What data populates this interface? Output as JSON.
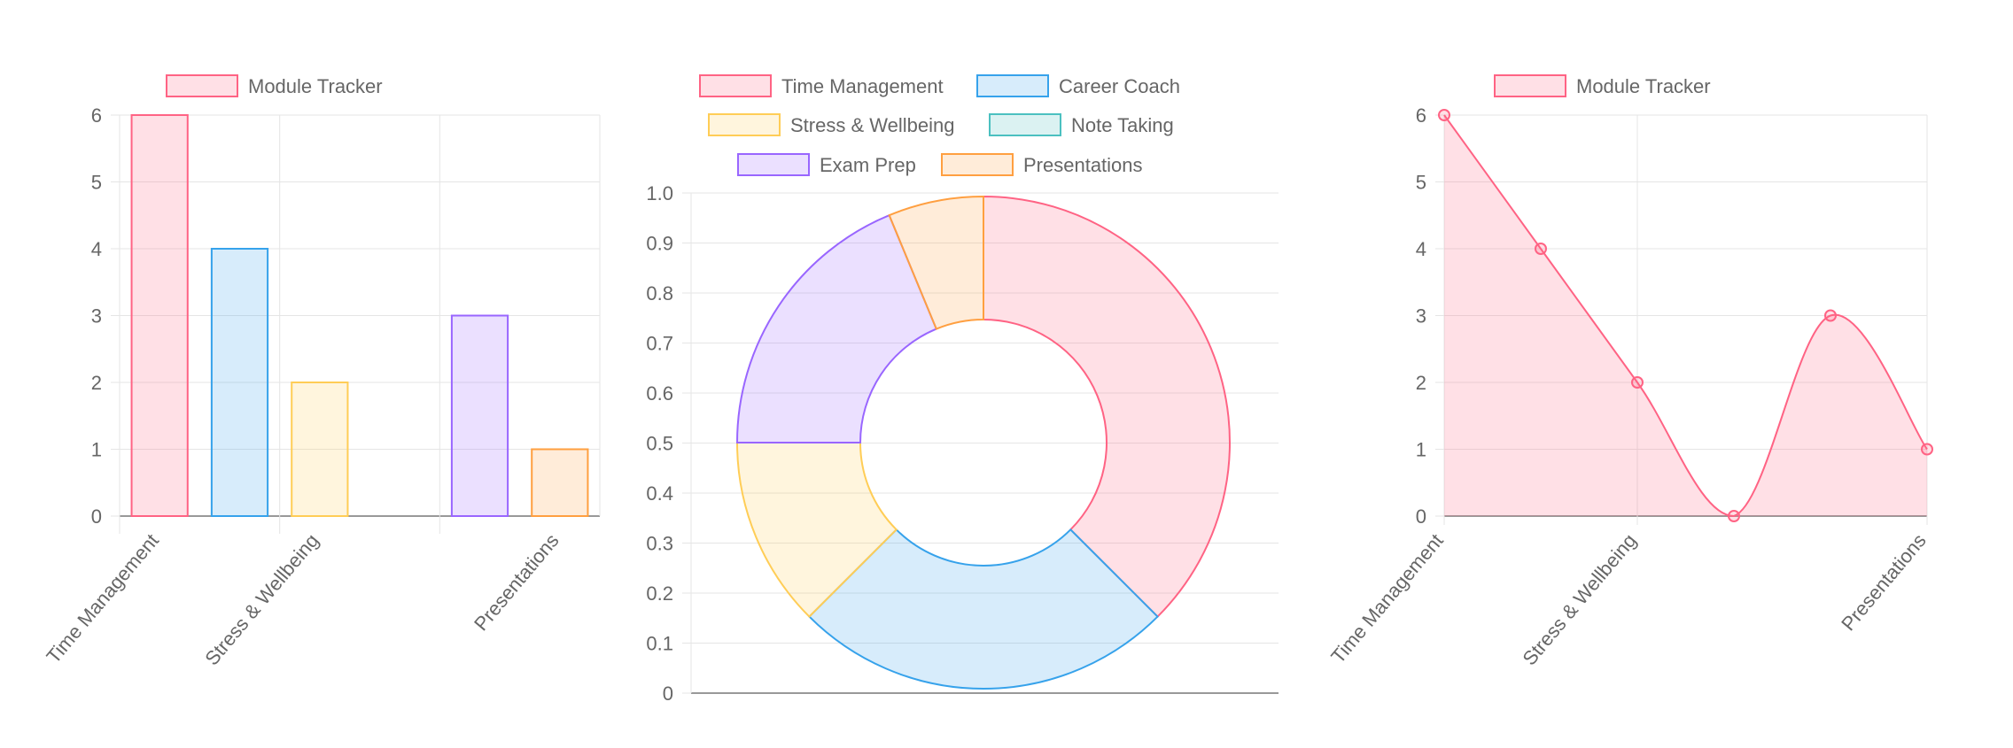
{
  "charts": [
    {
      "chart_data": {
        "type": "bar",
        "legend_position": "top-left",
        "grid": true,
        "categories": [
          "Time Management",
          "Career Coach",
          "Stress & Wellbeing",
          "Note Taking",
          "Exam Prep",
          "Presentations"
        ],
        "x_tick_labels": [
          "Time Management",
          "Stress & Wellbeing",
          "Presentations"
        ],
        "y_ticks": [
          "0",
          "1",
          "2",
          "3",
          "4",
          "5",
          "6"
        ],
        "ylim": [
          0,
          6
        ],
        "series": [
          {
            "name": "Module Tracker",
            "values": [
              6,
              4,
              2,
              0,
              3,
              1
            ]
          }
        ]
      }
    },
    {
      "chart_data": {
        "type": "pie",
        "variant": "doughnut",
        "legend_position": "top",
        "grid": true,
        "labels": [
          "Time Management",
          "Career Coach",
          "Stress & Wellbeing",
          "Note Taking",
          "Exam Prep",
          "Presentations"
        ],
        "values": [
          6,
          4,
          2,
          0,
          3,
          1
        ],
        "y_ticks": [
          "0",
          "0.1",
          "0.2",
          "0.3",
          "0.4",
          "0.5",
          "0.6",
          "0.7",
          "0.8",
          "0.9",
          "1.0"
        ],
        "ylim": [
          0,
          1
        ]
      }
    },
    {
      "chart_data": {
        "type": "area",
        "legend_position": "top-left",
        "grid": true,
        "categories": [
          "Time Management",
          "Career Coach",
          "Stress & Wellbeing",
          "Note Taking",
          "Exam Prep",
          "Presentations"
        ],
        "x_tick_labels": [
          "Time Management",
          "Stress & Wellbeing",
          "Presentations"
        ],
        "y_ticks": [
          "0",
          "1",
          "2",
          "3",
          "4",
          "5",
          "6"
        ],
        "ylim": [
          0,
          6
        ],
        "series": [
          {
            "name": "Module Tracker",
            "values": [
              6,
              4,
              2,
              0,
              3,
              1
            ]
          }
        ]
      }
    }
  ],
  "colors": {
    "palette_border": [
      "#ff6384",
      "#36a2eb",
      "#ffcd56",
      "#4bc0c0",
      "#9966ff",
      "#ff9f40"
    ],
    "palette_fill": [
      "rgba(255,99,132,0.2)",
      "rgba(54,162,235,0.2)",
      "rgba(255,205,86,0.2)",
      "rgba(75,192,192,0.2)",
      "rgba(153,102,255,0.2)",
      "rgba(255,159,64,0.2)"
    ],
    "grid": "#e5e5e5",
    "axis": "#999999",
    "text": "#666666"
  }
}
